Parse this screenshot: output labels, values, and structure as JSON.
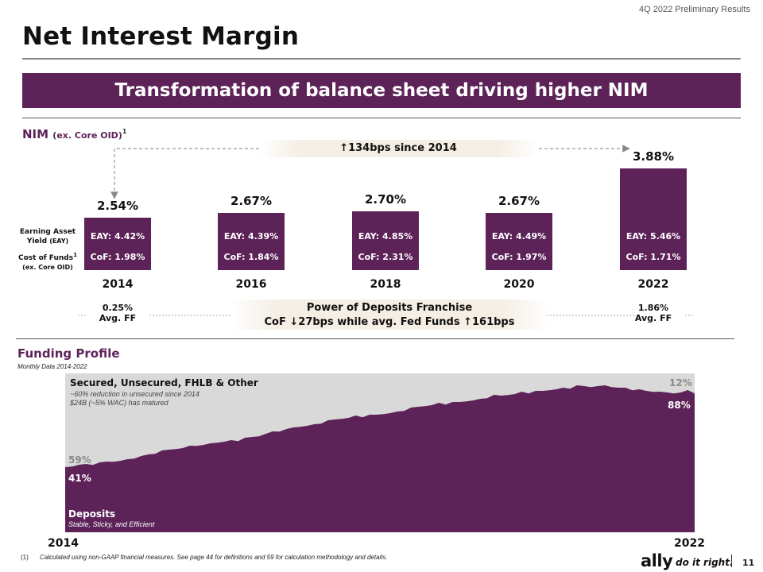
{
  "header": {
    "report_label": "4Q 2022 Preliminary Results",
    "title": "Net Interest Margin",
    "banner": "Transformation of balance sheet driving higher NIM"
  },
  "nim_section": {
    "title_main": "NIM",
    "title_sub": "(ex. Core OID)",
    "title_footnote": "1",
    "callout_top": "↑134bps since 2014",
    "row_labels": {
      "eay_line1": "Earning Asset",
      "eay_line2": "Yield",
      "eay_abbr": "(EAY)",
      "cof_line1": "Cost of Funds",
      "cof_footnote": "1",
      "cof_line2": "(ex. Core OID)"
    },
    "left_ff_value": "0.25%",
    "left_ff_label": "Avg. FF",
    "right_ff_value": "1.86%",
    "right_ff_label": "Avg. FF",
    "callout_bottom_line1": "Power of Deposits Franchise",
    "callout_bottom_line2": "CoF ↓27bps while avg. Fed Funds ↑161bps"
  },
  "funding_section": {
    "title": "Funding Profile",
    "subtitle": "Monthly Data 2014-2022",
    "secured_title": "Secured, Unsecured, FHLB & Other",
    "secured_note1": "~60% reduction in unsecured since 2014",
    "secured_note2": "$24B (~5% WAC) has matured",
    "deposits_title": "Deposits",
    "deposits_note": "Stable, Sticky, and Efficient",
    "start_other_pct": "59%",
    "start_deposit_pct": "41%",
    "end_other_pct": "12%",
    "end_deposit_pct": "88%",
    "start_year": "2014",
    "end_year": "2022"
  },
  "footer": {
    "footnote_num": "(1)",
    "footnote_text": "Calculated using non-GAAP financial measures. See page 44 for definitions and 59 for calculation methodology and details.",
    "logo": "ally",
    "tagline": "do it right.",
    "page_number": "11"
  },
  "colors": {
    "brand_purple": "#5d2359",
    "other_gray": "#d9d9d9"
  },
  "chart_data": [
    {
      "type": "bar",
      "title": "NIM (ex. Core OID)",
      "categories": [
        "2014",
        "2016",
        "2018",
        "2020",
        "2022"
      ],
      "values": [
        2.54,
        2.67,
        2.7,
        2.67,
        3.88
      ],
      "value_labels": [
        "2.54%",
        "2.67%",
        "2.70%",
        "2.67%",
        "3.88%"
      ],
      "eay_labels": [
        "EAY: 4.42%",
        "EAY: 4.39%",
        "EAY: 4.85%",
        "EAY: 4.49%",
        "EAY: 5.46%"
      ],
      "cof_labels": [
        "CoF: 1.98%",
        "CoF: 1.84%",
        "CoF: 2.31%",
        "CoF: 1.97%",
        "CoF: 1.71%"
      ],
      "ylabel": "",
      "xlabel": ""
    },
    {
      "type": "area",
      "title": "Funding Profile",
      "x_range": [
        "2014",
        "2022"
      ],
      "series": [
        {
          "name": "Deposits",
          "unit": "% of funding",
          "values": [
            41,
            42,
            42,
            43,
            43,
            44,
            44,
            45,
            45,
            46,
            47,
            48,
            49,
            50,
            51,
            52,
            53,
            53,
            54,
            55,
            55,
            56,
            57,
            57,
            58,
            58,
            59,
            60,
            61,
            62,
            63,
            64,
            65,
            66,
            67,
            67,
            68,
            69,
            70,
            71,
            72,
            72,
            73,
            73,
            74,
            74,
            75,
            75,
            76,
            77,
            78,
            79,
            80,
            80,
            81,
            81,
            82,
            82,
            83,
            83,
            84,
            85,
            86,
            86,
            87,
            87,
            88,
            88,
            89,
            89,
            90,
            90,
            91,
            91,
            92,
            92,
            92,
            92,
            92,
            92,
            91,
            91,
            90,
            90,
            89,
            89,
            88,
            88,
            88,
            88,
            89,
            88
          ]
        },
        {
          "name": "Secured, Unsecured, FHLB & Other",
          "unit": "% of funding",
          "values_note": "remainder to 100%"
        }
      ]
    }
  ]
}
